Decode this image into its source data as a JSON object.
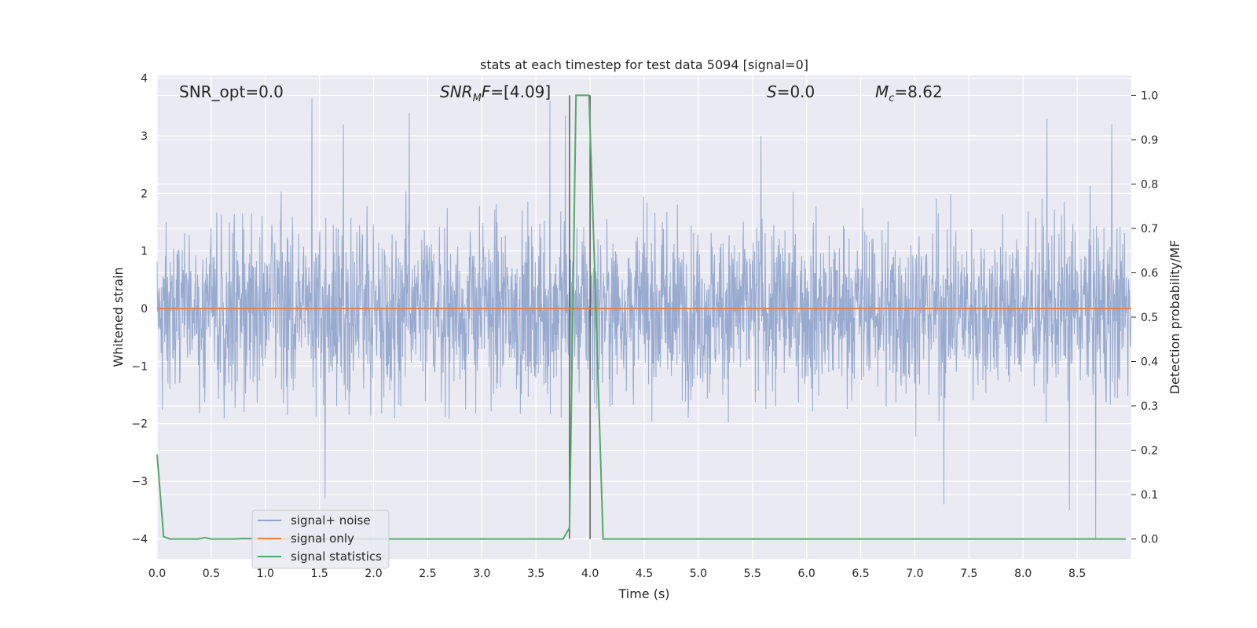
{
  "chart_data": {
    "type": "line",
    "title": "stats at each timestep for test data 5094 [signal=0]",
    "xlabel": "Time (s)",
    "ylabel": "Whitened strain",
    "ylabel_right": "Detection probability/MF",
    "xlim": [
      0.0,
      9.0
    ],
    "ylim": [
      -4.35,
      4.05
    ],
    "ylim_right": [
      -0.045,
      1.045
    ],
    "x_ticks": [
      0.0,
      0.5,
      1.0,
      1.5,
      2.0,
      2.5,
      3.0,
      3.5,
      4.0,
      4.5,
      5.0,
      5.5,
      6.0,
      6.5,
      7.0,
      7.5,
      8.0,
      8.5
    ],
    "x_tick_labels": [
      "0.0",
      "0.5",
      "1.0",
      "1.5",
      "2.0",
      "2.5",
      "3.0",
      "3.5",
      "4.0",
      "4.5",
      "5.0",
      "5.5",
      "6.0",
      "6.5",
      "7.0",
      "7.5",
      "8.0",
      "8.5"
    ],
    "y_ticks": [
      4,
      3,
      2,
      1,
      0,
      -1,
      -2,
      -3,
      -4
    ],
    "y_tick_labels": [
      "4",
      "3",
      "2",
      "1",
      "0",
      "−1",
      "−2",
      "−3",
      "−4"
    ],
    "y_ticks_right": [
      1.0,
      0.9,
      0.8,
      0.7,
      0.6,
      0.5,
      0.4,
      0.3,
      0.2,
      0.1,
      0.0
    ],
    "y_tick_labels_right": [
      "1.0",
      "0.9",
      "0.8",
      "0.7",
      "0.6",
      "0.5",
      "0.4",
      "0.3",
      "0.2",
      "0.1",
      "0.0"
    ],
    "grid": true,
    "legend_position": "lower-left",
    "annotations": {
      "snr_opt": "SNR_opt=0.0",
      "snr_mf_prefix": "SNR",
      "snr_mf_sub": "M",
      "snr_mf_suffix": "F",
      "snr_mf_value": "=[4.09]",
      "s_name": "S",
      "s_value": "=0.0",
      "mc_name": "M",
      "mc_sub": "c",
      "mc_value": "=8.62"
    },
    "vertical_markers_x": [
      3.81,
      4.0
    ],
    "series": [
      {
        "name": "signal+ noise",
        "color": "#8fa3cb",
        "axis": "left",
        "x_range": [
          0.0,
          9.0
        ],
        "typical_envelope": [
          -2.0,
          2.1
        ],
        "peak_spikes": [
          {
            "x": 1.43,
            "y": 3.65
          },
          {
            "x": 1.72,
            "y": 3.2
          },
          {
            "x": 2.33,
            "y": 3.4
          },
          {
            "x": 3.63,
            "y": 3.6
          },
          {
            "x": 3.77,
            "y": 3.35
          },
          {
            "x": 5.58,
            "y": 3.0
          },
          {
            "x": 8.22,
            "y": 3.3
          },
          {
            "x": 8.82,
            "y": 3.2
          },
          {
            "x": 1.55,
            "y": -3.3
          },
          {
            "x": 7.27,
            "y": -3.4
          },
          {
            "x": 8.43,
            "y": -3.5
          },
          {
            "x": 8.67,
            "y": -4.0
          }
        ]
      },
      {
        "name": "signal only",
        "color": "#dd8452",
        "axis": "left",
        "x": [
          0.0,
          9.0
        ],
        "y": [
          0.0,
          0.0
        ]
      },
      {
        "name": "signal statistics",
        "color": "#55a868",
        "axis": "right",
        "x": [
          0.0,
          0.06,
          0.12,
          0.2,
          0.3,
          0.38,
          0.44,
          0.5,
          0.7,
          0.8,
          1.0,
          1.5,
          2.0,
          2.5,
          3.0,
          3.5,
          3.75,
          3.81,
          3.87,
          3.93,
          3.99,
          4.05,
          4.12,
          4.2,
          5.0,
          6.0,
          7.0,
          8.0,
          8.95
        ],
        "y": [
          0.19,
          0.005,
          0.0,
          0.0,
          0.0,
          0.0,
          0.003,
          0.0,
          0.0,
          0.001,
          0.0,
          0.0,
          0.0,
          0.0,
          0.0,
          0.0,
          0.0,
          0.025,
          1.0,
          1.0,
          1.0,
          0.55,
          0.0,
          0.0,
          0.0,
          0.0,
          0.0,
          0.0,
          0.0
        ]
      }
    ]
  }
}
